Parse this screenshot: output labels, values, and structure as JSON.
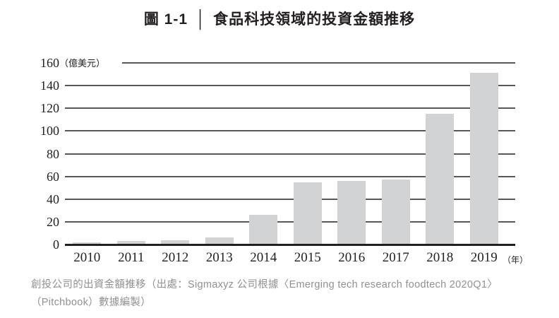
{
  "title": {
    "figure_label": "圖 1-1",
    "separator": "│",
    "text": "食品科技領域的投資金額推移"
  },
  "chart_data": {
    "type": "bar",
    "title": "食品科技領域的投資金額推移",
    "categories": [
      "2010",
      "2011",
      "2012",
      "2013",
      "2014",
      "2015",
      "2016",
      "2017",
      "2018",
      "2019"
    ],
    "values": [
      2,
      3,
      4,
      6,
      26,
      55,
      56,
      57,
      115,
      151
    ],
    "unit_label": "（億美元）",
    "x_unit_label": "（年）",
    "ylabel": "億美元",
    "xlabel": "年",
    "y_ticks": [
      0,
      20,
      40,
      60,
      80,
      100,
      120,
      140,
      160
    ],
    "ylim": [
      0,
      160
    ],
    "grid": true,
    "legend": false,
    "bar_color": "#d2d3d4",
    "gridline_color": "#55575a",
    "axis_color": "#231f20"
  },
  "caption": {
    "line1": "創投公司的出資金額推移（出處：Sigmaxyz 公司根據〈Emerging tech research foodtech 2020Q1〉",
    "line2": "（Pitchbook）數據編製）"
  }
}
